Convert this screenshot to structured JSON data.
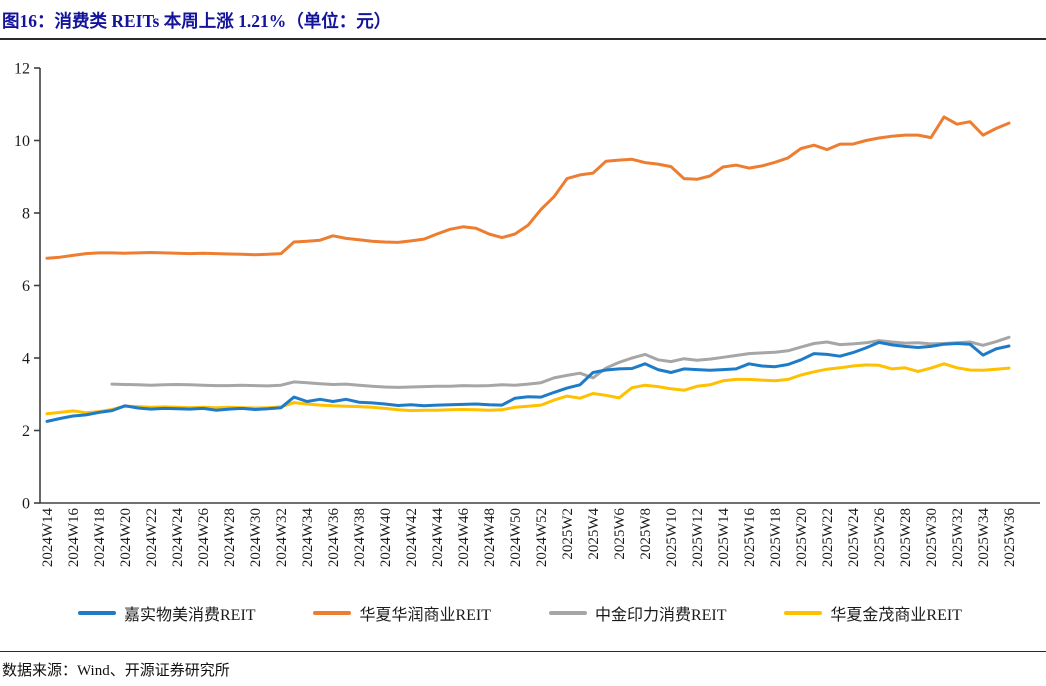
{
  "header": {
    "title": "图16：消费类 REITs 本周上涨 1.21%（单位：元）"
  },
  "footer": {
    "source": "数据来源：Wind、开源证券研究所"
  },
  "chart_data": {
    "type": "line",
    "title": "消费类 REITs 本周上涨 1.21%（单位：元）",
    "unit": "元",
    "ylim": [
      0,
      12
    ],
    "yticks": [
      0,
      2,
      4,
      6,
      8,
      10,
      12
    ],
    "grid": false,
    "legend_position": "bottom",
    "axis_color": "#404040",
    "label_every": 2,
    "categories": [
      "2024W14",
      "2024W15",
      "2024W16",
      "2024W17",
      "2024W18",
      "2024W19",
      "2024W20",
      "2024W21",
      "2024W22",
      "2024W23",
      "2024W24",
      "2024W25",
      "2024W26",
      "2024W27",
      "2024W28",
      "2024W29",
      "2024W30",
      "2024W31",
      "2024W32",
      "2024W33",
      "2024W34",
      "2024W35",
      "2024W36",
      "2024W37",
      "2024W38",
      "2024W39",
      "2024W40",
      "2024W41",
      "2024W42",
      "2024W43",
      "2024W44",
      "2024W45",
      "2024W46",
      "2024W47",
      "2024W48",
      "2024W49",
      "2024W50",
      "2024W51",
      "2024W52",
      "2025W1",
      "2025W2",
      "2025W3",
      "2025W4",
      "2025W5",
      "2025W6",
      "2025W7",
      "2025W8",
      "2025W9",
      "2025W10",
      "2025W11",
      "2025W12",
      "2025W13",
      "2025W14",
      "2025W15",
      "2025W16",
      "2025W17",
      "2025W18",
      "2025W19",
      "2025W20",
      "2025W21",
      "2025W22",
      "2025W23",
      "2025W24",
      "2025W25",
      "2025W26",
      "2025W27",
      "2025W28",
      "2025W29",
      "2025W30",
      "2025W31",
      "2025W32",
      "2025W33",
      "2025W34",
      "2025W35",
      "2025W36"
    ],
    "series": [
      {
        "name": "嘉实物美消费REIT",
        "color": "#1E7BC8",
        "z": 3,
        "values": [
          2.25,
          2.33,
          2.4,
          2.43,
          2.5,
          2.55,
          2.68,
          2.62,
          2.59,
          2.61,
          2.6,
          2.59,
          2.61,
          2.56,
          2.59,
          2.61,
          2.58,
          2.6,
          2.63,
          2.92,
          2.8,
          2.86,
          2.8,
          2.86,
          2.78,
          2.76,
          2.73,
          2.69,
          2.71,
          2.68,
          2.7,
          2.71,
          2.72,
          2.73,
          2.71,
          2.7,
          2.89,
          2.93,
          2.92,
          3.05,
          3.17,
          3.26,
          3.6,
          3.67,
          3.7,
          3.71,
          3.84,
          3.68,
          3.6,
          3.7,
          3.68,
          3.66,
          3.68,
          3.7,
          3.84,
          3.78,
          3.76,
          3.82,
          3.95,
          4.12,
          4.1,
          4.05,
          4.15,
          4.28,
          4.43,
          4.36,
          4.32,
          4.29,
          4.32,
          4.38,
          4.4,
          4.38,
          4.08,
          4.25,
          4.33
        ]
      },
      {
        "name": "华夏华润商业REIT",
        "color": "#ED7D31",
        "z": 4,
        "values": [
          6.75,
          6.78,
          6.83,
          6.88,
          6.9,
          6.9,
          6.89,
          6.9,
          6.91,
          6.9,
          6.89,
          6.88,
          6.89,
          6.88,
          6.87,
          6.86,
          6.85,
          6.86,
          6.88,
          7.2,
          7.22,
          7.25,
          7.37,
          7.3,
          7.26,
          7.22,
          7.2,
          7.19,
          7.23,
          7.28,
          7.42,
          7.55,
          7.62,
          7.58,
          7.42,
          7.32,
          7.42,
          7.66,
          8.1,
          8.45,
          8.95,
          9.05,
          9.1,
          9.43,
          9.46,
          9.48,
          9.39,
          9.35,
          9.28,
          8.95,
          8.93,
          9.02,
          9.27,
          9.32,
          9.24,
          9.3,
          9.4,
          9.52,
          9.78,
          9.87,
          9.75,
          9.9,
          9.9,
          10.0,
          10.07,
          10.12,
          10.15,
          10.15,
          10.08,
          10.65,
          10.45,
          10.52,
          10.15,
          10.33,
          10.48
        ]
      },
      {
        "name": "中金印力消费REIT",
        "color": "#A6A6A6",
        "z": 1,
        "values": [
          null,
          null,
          null,
          null,
          null,
          3.28,
          3.27,
          3.26,
          3.25,
          3.26,
          3.27,
          3.26,
          3.25,
          3.24,
          3.24,
          3.25,
          3.24,
          3.23,
          3.25,
          3.34,
          3.32,
          3.29,
          3.27,
          3.28,
          3.25,
          3.22,
          3.2,
          3.19,
          3.2,
          3.21,
          3.22,
          3.22,
          3.24,
          3.23,
          3.24,
          3.26,
          3.25,
          3.28,
          3.32,
          3.45,
          3.52,
          3.58,
          3.45,
          3.72,
          3.88,
          4.0,
          4.1,
          3.95,
          3.9,
          3.98,
          3.94,
          3.97,
          4.02,
          4.07,
          4.12,
          4.14,
          4.16,
          4.2,
          4.3,
          4.4,
          4.44,
          4.37,
          4.39,
          4.42,
          4.48,
          4.44,
          4.41,
          4.42,
          4.39,
          4.4,
          4.42,
          4.44,
          4.35,
          4.45,
          4.57
        ]
      },
      {
        "name": "华夏金茂商业REIT",
        "color": "#FFC000",
        "z": 2,
        "values": [
          2.46,
          2.5,
          2.54,
          2.49,
          2.52,
          2.58,
          2.67,
          2.66,
          2.64,
          2.65,
          2.64,
          2.63,
          2.64,
          2.63,
          2.64,
          2.63,
          2.62,
          2.63,
          2.65,
          2.77,
          2.73,
          2.7,
          2.68,
          2.67,
          2.66,
          2.64,
          2.61,
          2.57,
          2.55,
          2.56,
          2.56,
          2.57,
          2.58,
          2.57,
          2.56,
          2.57,
          2.64,
          2.67,
          2.7,
          2.84,
          2.95,
          2.89,
          3.02,
          2.97,
          2.9,
          3.18,
          3.25,
          3.21,
          3.15,
          3.11,
          3.22,
          3.26,
          3.37,
          3.41,
          3.41,
          3.39,
          3.37,
          3.41,
          3.53,
          3.62,
          3.69,
          3.73,
          3.78,
          3.81,
          3.8,
          3.7,
          3.73,
          3.63,
          3.72,
          3.84,
          3.73,
          3.67,
          3.66,
          3.69,
          3.72
        ]
      }
    ]
  }
}
